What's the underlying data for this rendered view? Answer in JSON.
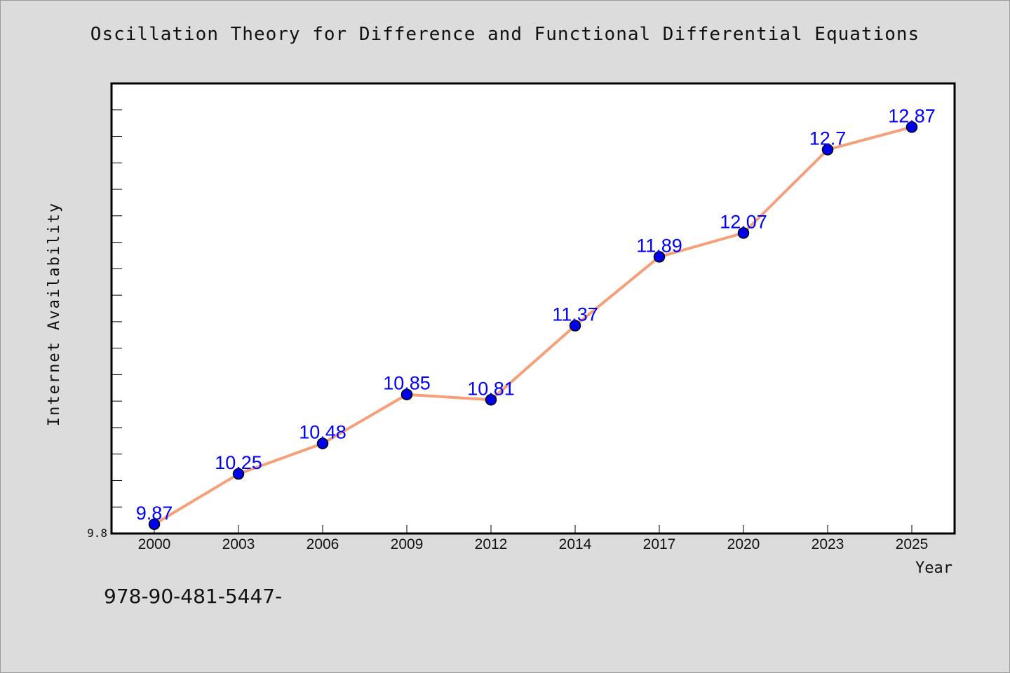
{
  "chart_data": {
    "type": "line",
    "title": "Oscillation Theory for Difference and Functional Differential Equations",
    "xlabel": "Year",
    "ylabel": "Internet Availability",
    "categories": [
      "2000",
      "2003",
      "2006",
      "2009",
      "2012",
      "2014",
      "2017",
      "2020",
      "2023",
      "2025"
    ],
    "series": [
      {
        "values": [
          9.87,
          10.25,
          10.48,
          10.85,
          10.81,
          11.37,
          11.89,
          12.07,
          12.7,
          12.87
        ],
        "data_labels": [
          "9.87",
          "10.25",
          "10.48",
          "10.85",
          "10.81",
          "11.37",
          "11.89",
          "12.07",
          "12.7",
          "12.87"
        ]
      }
    ],
    "ylim": [
      9.8,
      13.2
    ],
    "y_tick_labels": [
      "9.8"
    ],
    "grid": false,
    "colors": {
      "line": "#f4a07a",
      "marker": "#0000ee",
      "label": "#0000ff",
      "plot_background": "#ffffff",
      "page_background": "#dcdcdc"
    }
  },
  "footer": {
    "isbn": "978-90-481-5447-"
  }
}
